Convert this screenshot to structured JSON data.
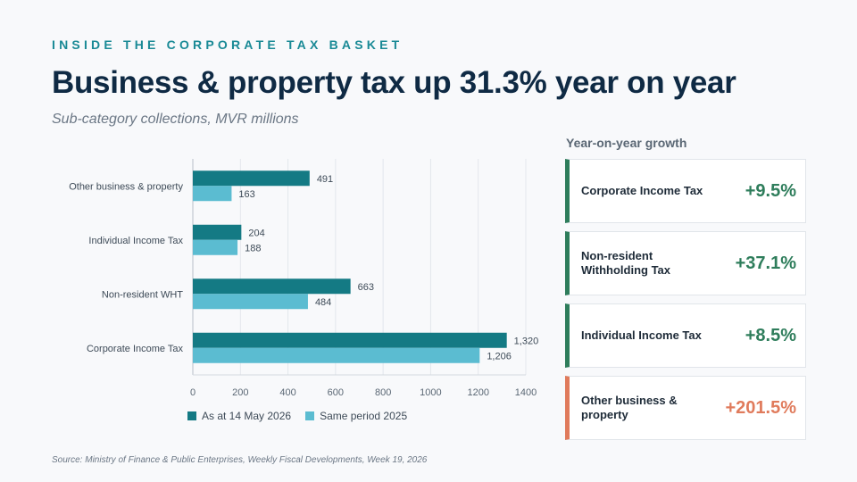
{
  "header": {
    "kicker": "INSIDE THE CORPORATE TAX BASKET",
    "title": "Business & property tax up 31.3% year on year",
    "subtitle": "Sub-category collections, MVR millions"
  },
  "colors": {
    "current": "#147a84",
    "previous": "#5bbcd1",
    "positive": "#2e7d5b",
    "negative_accent": "#e07b5c"
  },
  "chart_data": {
    "type": "bar",
    "orientation": "horizontal",
    "categories": [
      "Other business & property",
      "Individual Income Tax",
      "Non-resident WHT",
      "Corporate Income Tax"
    ],
    "series": [
      {
        "name": "As at 14 May 2026",
        "values": [
          491,
          204,
          663,
          1320
        ],
        "labels": [
          "491",
          "204",
          "663",
          "1,320"
        ]
      },
      {
        "name": "Same period 2025",
        "values": [
          163,
          188,
          484,
          1206
        ],
        "labels": [
          "163",
          "188",
          "484",
          "1,206"
        ]
      }
    ],
    "xlim": [
      0,
      1400
    ],
    "xticks": [
      "0",
      "200",
      "400",
      "600",
      "800",
      "1000",
      "1200",
      "1400"
    ],
    "grid": true,
    "legend_position": "bottom"
  },
  "growth": {
    "title": "Year-on-year growth",
    "cards": [
      {
        "label": "Corporate Income Tax",
        "value": "+9.5%"
      },
      {
        "label": "Non-resident Withholding Tax",
        "value": "+37.1%"
      },
      {
        "label": "Individual Income Tax",
        "value": "+8.5%"
      },
      {
        "label": "Other business & property",
        "value": "+201.5%"
      }
    ]
  },
  "source": "Source: Ministry of Finance & Public Enterprises, Weekly Fiscal Developments, Week 19, 2026"
}
